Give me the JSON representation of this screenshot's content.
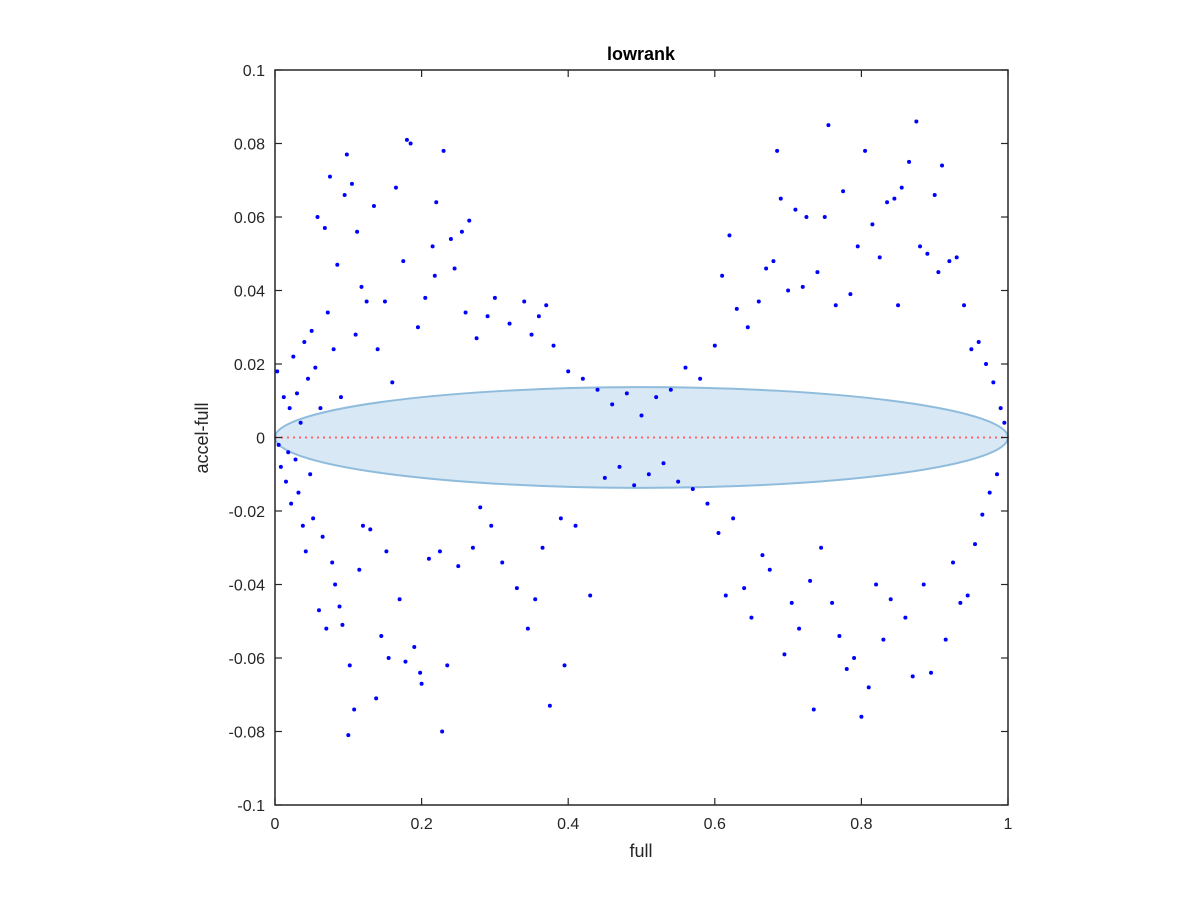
{
  "chart_data": {
    "type": "scatter",
    "title": "lowrank",
    "xlabel": "full",
    "ylabel": "accel-full",
    "xlim": [
      0,
      1
    ],
    "ylim": [
      -0.1,
      0.1
    ],
    "xticks": [
      0,
      0.2,
      0.4,
      0.6,
      0.8,
      1
    ],
    "xtick_labels": [
      "0",
      "0.2",
      "0.4",
      "0.6",
      "0.8",
      "1"
    ],
    "yticks": [
      -0.1,
      -0.08,
      -0.06,
      -0.04,
      -0.02,
      0,
      0.02,
      0.04,
      0.06,
      0.08,
      0.1
    ],
    "ytick_labels": [
      "-0.1",
      "-0.08",
      "-0.06",
      "-0.04",
      "-0.02",
      "0",
      "0.02",
      "0.04",
      "0.06",
      "0.08",
      "0.1"
    ],
    "grid": false,
    "legend": "none",
    "colors": {
      "points": "#0000ff",
      "ellipse_fill": "#d6e7f4",
      "ellipse_edge": "#8fbcdc",
      "zero_line": "#ff6666",
      "axes": "#262626"
    },
    "reference_line": {
      "y": 0,
      "style": "dotted",
      "color": "#ff6666"
    },
    "ellipse": {
      "center": [
        0.5,
        0
      ],
      "x_radius": 0.5,
      "y_radius": 0.0137
    },
    "points": [
      [
        0.003,
        0.018
      ],
      [
        0.005,
        -0.002
      ],
      [
        0.008,
        -0.008
      ],
      [
        0.012,
        0.011
      ],
      [
        0.015,
        -0.012
      ],
      [
        0.018,
        -0.004
      ],
      [
        0.02,
        0.008
      ],
      [
        0.022,
        -0.018
      ],
      [
        0.025,
        0.022
      ],
      [
        0.028,
        -0.006
      ],
      [
        0.03,
        0.012
      ],
      [
        0.032,
        -0.015
      ],
      [
        0.035,
        0.004
      ],
      [
        0.038,
        -0.024
      ],
      [
        0.04,
        0.026
      ],
      [
        0.042,
        -0.031
      ],
      [
        0.045,
        0.016
      ],
      [
        0.048,
        -0.01
      ],
      [
        0.05,
        0.029
      ],
      [
        0.052,
        -0.022
      ],
      [
        0.055,
        0.019
      ],
      [
        0.058,
        0.06
      ],
      [
        0.06,
        -0.047
      ],
      [
        0.062,
        0.008
      ],
      [
        0.065,
        -0.027
      ],
      [
        0.068,
        0.057
      ],
      [
        0.07,
        -0.052
      ],
      [
        0.072,
        0.034
      ],
      [
        0.075,
        0.071
      ],
      [
        0.078,
        -0.034
      ],
      [
        0.08,
        0.024
      ],
      [
        0.082,
        -0.04
      ],
      [
        0.085,
        0.047
      ],
      [
        0.088,
        -0.046
      ],
      [
        0.09,
        0.011
      ],
      [
        0.092,
        -0.051
      ],
      [
        0.095,
        0.066
      ],
      [
        0.098,
        0.077
      ],
      [
        0.1,
        -0.081
      ],
      [
        0.102,
        -0.062
      ],
      [
        0.105,
        0.069
      ],
      [
        0.108,
        -0.074
      ],
      [
        0.11,
        0.028
      ],
      [
        0.112,
        0.056
      ],
      [
        0.115,
        -0.036
      ],
      [
        0.118,
        0.041
      ],
      [
        0.12,
        -0.024
      ],
      [
        0.125,
        0.037
      ],
      [
        0.13,
        -0.025
      ],
      [
        0.135,
        0.063
      ],
      [
        0.138,
        -0.071
      ],
      [
        0.14,
        0.024
      ],
      [
        0.145,
        -0.054
      ],
      [
        0.15,
        0.037
      ],
      [
        0.152,
        -0.031
      ],
      [
        0.155,
        -0.06
      ],
      [
        0.16,
        0.015
      ],
      [
        0.165,
        0.068
      ],
      [
        0.17,
        -0.044
      ],
      [
        0.175,
        0.048
      ],
      [
        0.178,
        -0.061
      ],
      [
        0.18,
        0.081
      ],
      [
        0.185,
        0.08
      ],
      [
        0.19,
        -0.057
      ],
      [
        0.195,
        0.03
      ],
      [
        0.198,
        -0.064
      ],
      [
        0.2,
        -0.067
      ],
      [
        0.205,
        0.038
      ],
      [
        0.21,
        -0.033
      ],
      [
        0.215,
        0.052
      ],
      [
        0.218,
        0.044
      ],
      [
        0.22,
        0.064
      ],
      [
        0.225,
        -0.031
      ],
      [
        0.228,
        -0.08
      ],
      [
        0.23,
        0.078
      ],
      [
        0.235,
        -0.062
      ],
      [
        0.24,
        0.054
      ],
      [
        0.245,
        0.046
      ],
      [
        0.25,
        -0.035
      ],
      [
        0.255,
        0.056
      ],
      [
        0.26,
        0.034
      ],
      [
        0.265,
        0.059
      ],
      [
        0.27,
        -0.03
      ],
      [
        0.275,
        0.027
      ],
      [
        0.28,
        -0.019
      ],
      [
        0.29,
        0.033
      ],
      [
        0.295,
        -0.024
      ],
      [
        0.3,
        0.038
      ],
      [
        0.31,
        -0.034
      ],
      [
        0.32,
        0.031
      ],
      [
        0.33,
        -0.041
      ],
      [
        0.34,
        0.037
      ],
      [
        0.345,
        -0.052
      ],
      [
        0.35,
        0.028
      ],
      [
        0.355,
        -0.044
      ],
      [
        0.36,
        0.033
      ],
      [
        0.365,
        -0.03
      ],
      [
        0.37,
        0.036
      ],
      [
        0.375,
        -0.073
      ],
      [
        0.38,
        0.025
      ],
      [
        0.39,
        -0.022
      ],
      [
        0.395,
        -0.062
      ],
      [
        0.4,
        0.018
      ],
      [
        0.41,
        -0.024
      ],
      [
        0.42,
        0.016
      ],
      [
        0.43,
        -0.043
      ],
      [
        0.44,
        0.013
      ],
      [
        0.45,
        -0.011
      ],
      [
        0.46,
        0.009
      ],
      [
        0.47,
        -0.008
      ],
      [
        0.48,
        0.012
      ],
      [
        0.49,
        -0.013
      ],
      [
        0.5,
        0.006
      ],
      [
        0.51,
        -0.01
      ],
      [
        0.52,
        0.011
      ],
      [
        0.53,
        -0.007
      ],
      [
        0.54,
        0.013
      ],
      [
        0.55,
        -0.012
      ],
      [
        0.56,
        0.019
      ],
      [
        0.57,
        -0.014
      ],
      [
        0.58,
        0.016
      ],
      [
        0.59,
        -0.018
      ],
      [
        0.6,
        0.025
      ],
      [
        0.605,
        -0.026
      ],
      [
        0.61,
        0.044
      ],
      [
        0.615,
        -0.043
      ],
      [
        0.62,
        0.055
      ],
      [
        0.625,
        -0.022
      ],
      [
        0.63,
        0.035
      ],
      [
        0.64,
        -0.041
      ],
      [
        0.645,
        0.03
      ],
      [
        0.65,
        -0.049
      ],
      [
        0.66,
        0.037
      ],
      [
        0.665,
        -0.032
      ],
      [
        0.67,
        0.046
      ],
      [
        0.675,
        -0.036
      ],
      [
        0.68,
        0.048
      ],
      [
        0.685,
        0.078
      ],
      [
        0.69,
        0.065
      ],
      [
        0.695,
        -0.059
      ],
      [
        0.7,
        0.04
      ],
      [
        0.705,
        -0.045
      ],
      [
        0.71,
        0.062
      ],
      [
        0.715,
        -0.052
      ],
      [
        0.72,
        0.041
      ],
      [
        0.725,
        0.06
      ],
      [
        0.73,
        -0.039
      ],
      [
        0.735,
        -0.074
      ],
      [
        0.74,
        0.045
      ],
      [
        0.745,
        -0.03
      ],
      [
        0.75,
        0.06
      ],
      [
        0.755,
        0.085
      ],
      [
        0.76,
        -0.045
      ],
      [
        0.765,
        0.036
      ],
      [
        0.77,
        -0.054
      ],
      [
        0.775,
        0.067
      ],
      [
        0.78,
        -0.063
      ],
      [
        0.785,
        0.039
      ],
      [
        0.79,
        -0.06
      ],
      [
        0.795,
        0.052
      ],
      [
        0.8,
        -0.076
      ],
      [
        0.805,
        0.078
      ],
      [
        0.81,
        -0.068
      ],
      [
        0.815,
        0.058
      ],
      [
        0.82,
        -0.04
      ],
      [
        0.825,
        0.049
      ],
      [
        0.83,
        -0.055
      ],
      [
        0.835,
        0.064
      ],
      [
        0.84,
        -0.044
      ],
      [
        0.845,
        0.065
      ],
      [
        0.85,
        0.036
      ],
      [
        0.855,
        0.068
      ],
      [
        0.86,
        -0.049
      ],
      [
        0.865,
        0.075
      ],
      [
        0.87,
        -0.065
      ],
      [
        0.875,
        0.086
      ],
      [
        0.88,
        0.052
      ],
      [
        0.885,
        -0.04
      ],
      [
        0.89,
        0.05
      ],
      [
        0.895,
        -0.064
      ],
      [
        0.9,
        0.066
      ],
      [
        0.905,
        0.045
      ],
      [
        0.91,
        0.074
      ],
      [
        0.915,
        -0.055
      ],
      [
        0.92,
        0.048
      ],
      [
        0.925,
        -0.034
      ],
      [
        0.93,
        0.049
      ],
      [
        0.935,
        -0.045
      ],
      [
        0.94,
        0.036
      ],
      [
        0.945,
        -0.043
      ],
      [
        0.95,
        0.024
      ],
      [
        0.955,
        -0.029
      ],
      [
        0.96,
        0.026
      ],
      [
        0.965,
        -0.021
      ],
      [
        0.97,
        0.02
      ],
      [
        0.975,
        -0.015
      ],
      [
        0.98,
        0.015
      ],
      [
        0.985,
        -0.01
      ],
      [
        0.99,
        0.008
      ],
      [
        0.995,
        0.004
      ]
    ]
  }
}
